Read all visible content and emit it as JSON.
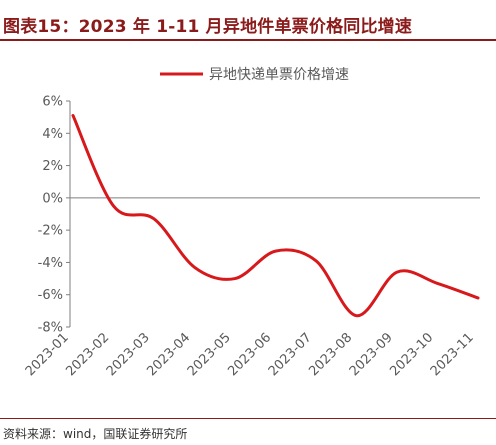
{
  "header": {
    "title": "图表15：2023 年 1-11 月异地件单票价格同比增速"
  },
  "footer": {
    "source": "资料来源：wind，国联证券研究所"
  },
  "colors": {
    "title": "#8b1a1a",
    "series": "#d7191c",
    "axis": "#7f7f7f",
    "text": "#595959"
  },
  "chart_data": {
    "type": "line",
    "title": "",
    "xlabel": "",
    "ylabel": "",
    "categories": [
      "2023-01",
      "2023-02",
      "2023-03",
      "2023-04",
      "2023-05",
      "2023-06",
      "2023-07",
      "2023-08",
      "2023-09",
      "2023-10",
      "2023-11"
    ],
    "series": [
      {
        "name": "异地快递单票价格增速",
        "color": "#d7191c",
        "values": [
          5.1,
          -0.5,
          -1.3,
          -4.3,
          -5.0,
          -3.3,
          -3.9,
          -7.3,
          -4.6,
          -5.3,
          -6.2
        ]
      }
    ],
    "ylim": [
      -8,
      6
    ],
    "yticks": [
      6,
      4,
      2,
      0,
      -2,
      -4,
      -6,
      -8
    ],
    "ytick_labels": [
      "6%",
      "4%",
      "2%",
      "0%",
      "-2%",
      "-4%",
      "-6%",
      "-8%"
    ],
    "grid": false,
    "legend": "top"
  }
}
